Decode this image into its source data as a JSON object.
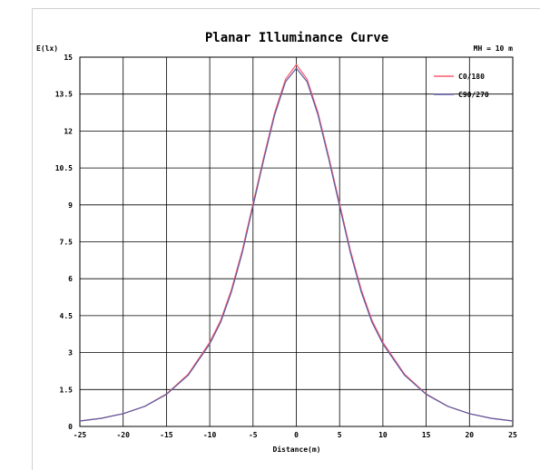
{
  "chart_data": {
    "type": "line",
    "title": "Planar Illuminance Curve",
    "ylabel": "E(lx)",
    "xlabel": "Distance(m)",
    "annotation": "MH = 10 m",
    "xlim": [
      -25,
      25
    ],
    "ylim": [
      0,
      15
    ],
    "x_ticks": [
      "-25",
      "-20",
      "-15",
      "-10",
      "-5",
      "0",
      "5",
      "10",
      "15",
      "20",
      "25"
    ],
    "y_ticks": [
      "0",
      "1.5",
      "3",
      "4.5",
      "6",
      "7.5",
      "9",
      "10.5",
      "12",
      "13.5",
      "15"
    ],
    "grid": true,
    "legend_position": "top-right",
    "x": [
      -25,
      -22.5,
      -20,
      -17.5,
      -15,
      -12.5,
      -10,
      -8.75,
      -7.5,
      -6.25,
      -5,
      -3.75,
      -2.5,
      -1.25,
      0,
      1.25,
      2.5,
      3.75,
      5,
      6.25,
      7.5,
      8.75,
      10,
      12.5,
      15,
      17.5,
      20,
      22.5,
      25
    ],
    "series": [
      {
        "name": "C0/180",
        "color": "#ff5a6e",
        "values": [
          0.22,
          0.33,
          0.52,
          0.82,
          1.32,
          2.12,
          3.42,
          4.3,
          5.55,
          7.15,
          9.05,
          10.95,
          12.75,
          14.1,
          14.7,
          14.1,
          12.75,
          10.95,
          9.05,
          7.15,
          5.55,
          4.3,
          3.42,
          2.12,
          1.32,
          0.82,
          0.52,
          0.33,
          0.22
        ]
      },
      {
        "name": "C90/270",
        "color": "#5a5aa0",
        "values": [
          0.22,
          0.33,
          0.52,
          0.82,
          1.3,
          2.08,
          3.35,
          4.22,
          5.45,
          7.05,
          8.95,
          10.85,
          12.65,
          14.0,
          14.55,
          14.0,
          12.65,
          10.85,
          8.95,
          7.05,
          5.45,
          4.22,
          3.35,
          2.08,
          1.3,
          0.82,
          0.52,
          0.33,
          0.22
        ]
      }
    ]
  }
}
